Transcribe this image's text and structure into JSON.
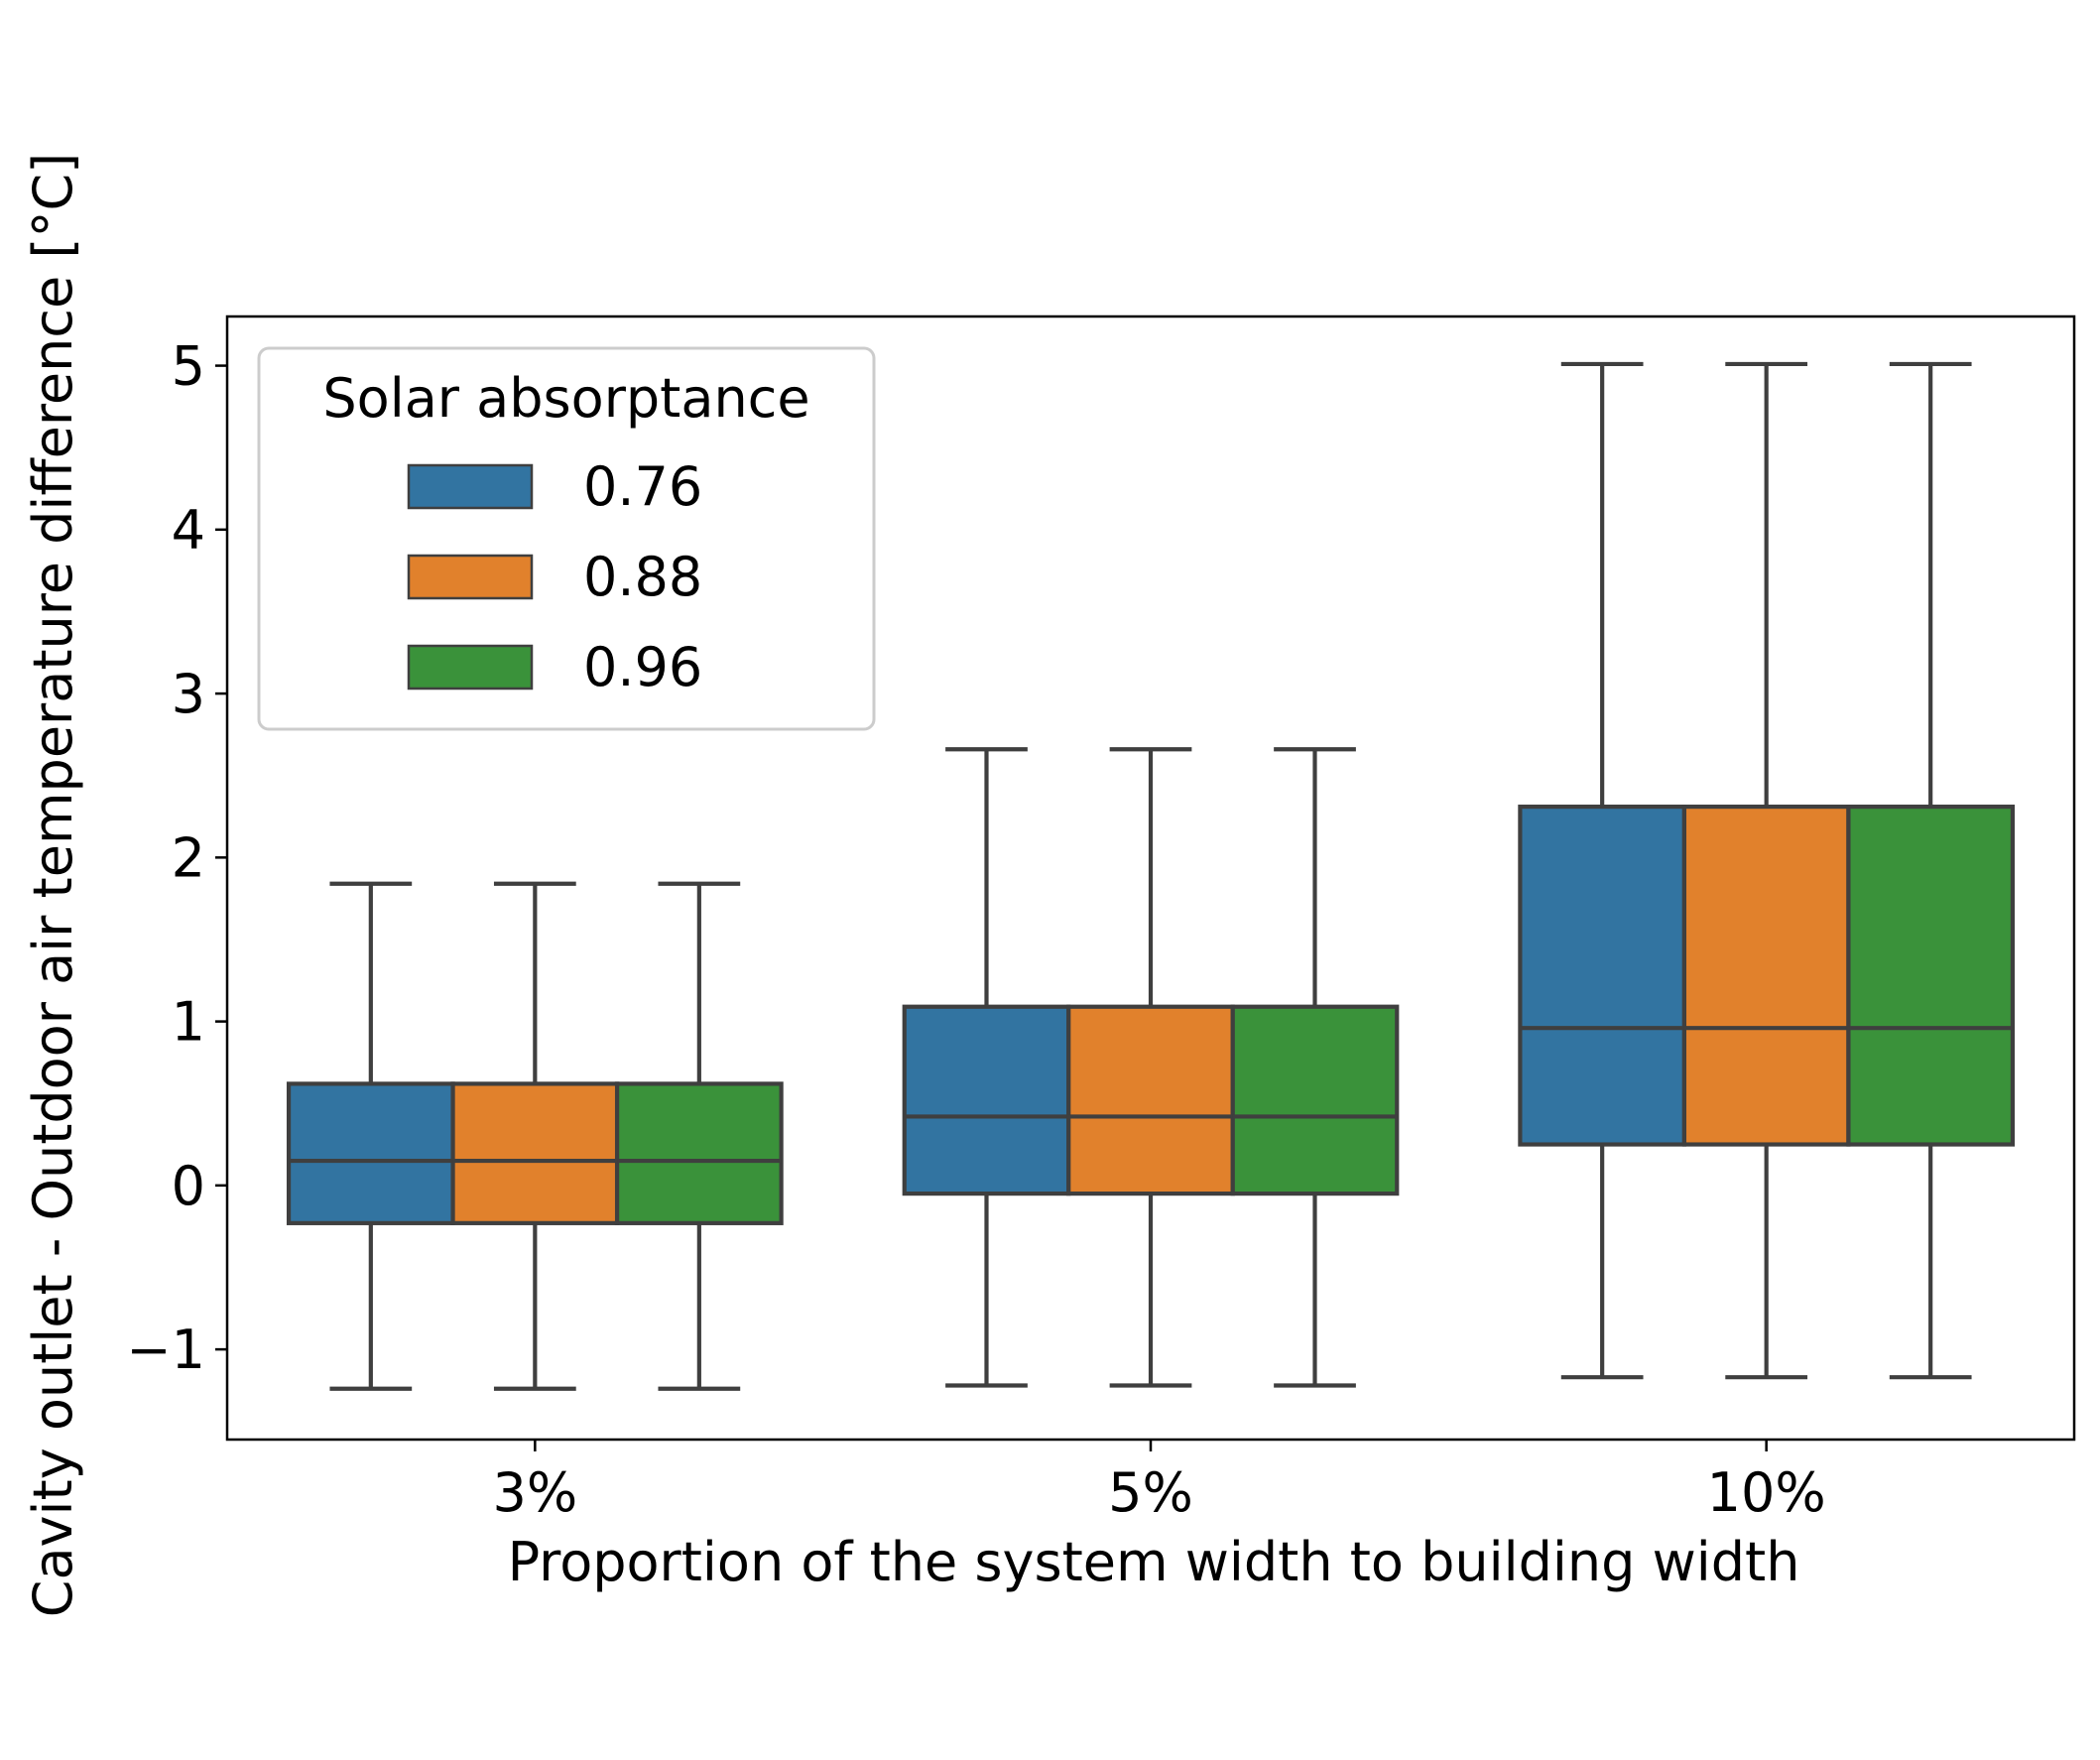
{
  "chart_data": {
    "type": "box",
    "xlabel": "Proportion of the system width to building width",
    "ylabel": "Cavity outlet - Outdoor air temperature difference [°C]",
    "categories": [
      "3%",
      "5%",
      "10%"
    ],
    "ylim": [
      -1.55,
      5.3
    ],
    "yticks": [
      -1,
      0,
      1,
      2,
      3,
      4,
      5
    ],
    "ytick_labels": [
      "−1",
      "0",
      "1",
      "2",
      "3",
      "4",
      "5"
    ],
    "grid": false,
    "legend": {
      "title": "Solar absorptance",
      "position": "top-left",
      "entries": [
        "0.76",
        "0.88",
        "0.96"
      ]
    },
    "series": [
      {
        "name": "0.76",
        "color": "#3274a1",
        "boxes": [
          {
            "whisker_low": -1.24,
            "q1": -0.23,
            "median": 0.15,
            "q3": 0.62,
            "whisker_high": 1.84
          },
          {
            "whisker_low": -1.22,
            "q1": -0.05,
            "median": 0.42,
            "q3": 1.09,
            "whisker_high": 2.66
          },
          {
            "whisker_low": -1.17,
            "q1": 0.25,
            "median": 0.96,
            "q3": 2.31,
            "whisker_high": 5.01
          }
        ]
      },
      {
        "name": "0.88",
        "color": "#e1812c",
        "boxes": [
          {
            "whisker_low": -1.24,
            "q1": -0.23,
            "median": 0.15,
            "q3": 0.62,
            "whisker_high": 1.84
          },
          {
            "whisker_low": -1.22,
            "q1": -0.05,
            "median": 0.42,
            "q3": 1.09,
            "whisker_high": 2.66
          },
          {
            "whisker_low": -1.17,
            "q1": 0.25,
            "median": 0.96,
            "q3": 2.31,
            "whisker_high": 5.01
          }
        ]
      },
      {
        "name": "0.96",
        "color": "#3a923a",
        "boxes": [
          {
            "whisker_low": -1.24,
            "q1": -0.23,
            "median": 0.15,
            "q3": 0.62,
            "whisker_high": 1.84
          },
          {
            "whisker_low": -1.22,
            "q1": -0.05,
            "median": 0.42,
            "q3": 1.09,
            "whisker_high": 2.66
          },
          {
            "whisker_low": -1.17,
            "q1": 0.25,
            "median": 0.96,
            "q3": 2.31,
            "whisker_high": 5.01
          }
        ]
      }
    ],
    "line_color": "#3f3f3f"
  }
}
